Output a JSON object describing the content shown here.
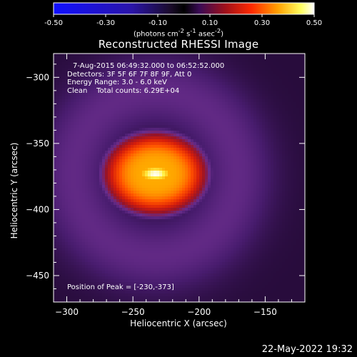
{
  "chart_data": {
    "type": "heatmap",
    "title": "Reconstructed RHESSI Image",
    "xlabel": "Heliocentric X (arcsec)",
    "ylabel": "Heliocentric Y (arcsec)",
    "xlim": [
      -310,
      -120
    ],
    "ylim": [
      -470,
      -282
    ],
    "x_ticks": [
      -300,
      -250,
      -200,
      -150
    ],
    "y_ticks": [
      -300,
      -350,
      -400,
      -450
    ],
    "colorbar": {
      "min": -0.5,
      "max": 0.5,
      "ticks": [
        "-0.50",
        "-0.30",
        "-0.10",
        "0.10",
        "0.30",
        "0.50"
      ],
      "unit_prefix": "(photons cm",
      "unit_sup1": "-2",
      "unit_mid": " s",
      "unit_sup2": "-1",
      "unit_suffix": " asec",
      "unit_sup3": "-2",
      "unit_close": ")"
    },
    "info_lines": [
      "7-Aug-2015 06:49:32.000 to 06:52:52.000",
      "Detectors: 3F 5F 6F 7F 8F 9F, Att 0",
      "Energy Range: 3.0 - 6.0 keV",
      "Clean    Total counts: 6.29E+04"
    ],
    "peak_label": "Position of Peak = [-230,-373]",
    "peak": [
      -230,
      -373
    ],
    "source": {
      "center": [
        -233,
        -373
      ],
      "peak_value": 0.5,
      "core_value": 0.4,
      "extent_x": 38,
      "extent_y": 30
    },
    "ring": {
      "value": 0.07,
      "radius": 90,
      "outer_value": 0.02
    },
    "colormap": "rainbow-purple-red-yellow-white"
  },
  "datestamp": "22-May-2022 19:32"
}
